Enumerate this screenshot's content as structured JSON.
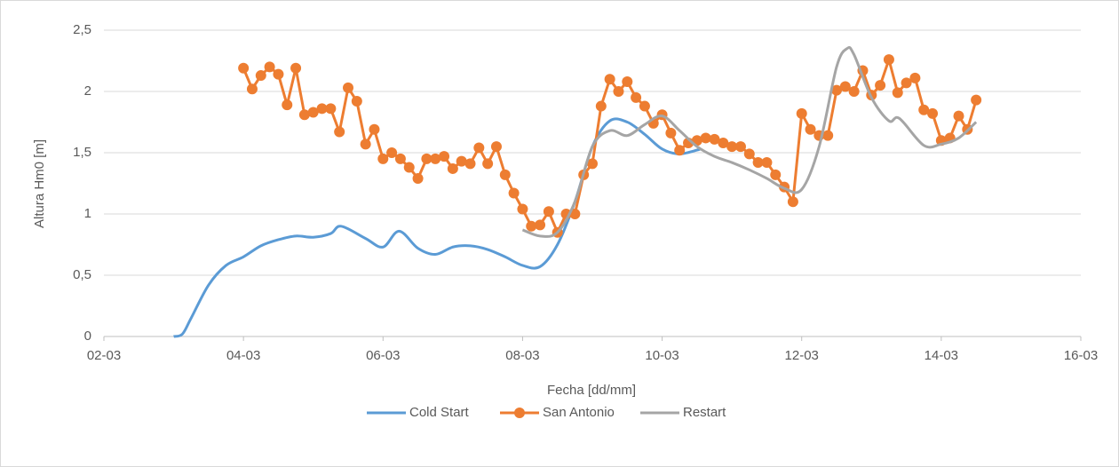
{
  "chart_data": {
    "type": "line",
    "x_label": "Fecha [dd/mm]",
    "y_label": "Altura  Hm0 [m]",
    "xlim": [
      2,
      16
    ],
    "xticks": [
      {
        "value": 2,
        "label": "02-03"
      },
      {
        "value": 4,
        "label": "04-03"
      },
      {
        "value": 6,
        "label": "06-03"
      },
      {
        "value": 8,
        "label": "08-03"
      },
      {
        "value": 10,
        "label": "10-03"
      },
      {
        "value": 12,
        "label": "12-03"
      },
      {
        "value": 14,
        "label": "14-03"
      },
      {
        "value": 16,
        "label": "16-03"
      }
    ],
    "ylim": [
      0,
      2.5
    ],
    "yticks": [
      0,
      {
        "value": 0.5,
        "label": "0,5"
      },
      1,
      {
        "value": 1.5,
        "label": "1,5"
      },
      2,
      {
        "value": 2.5,
        "label": "2,5"
      }
    ],
    "grid": true,
    "legend": "bottom",
    "series": [
      {
        "name": "Cold Start",
        "color": "#5b9bd5",
        "marker": false,
        "x": [
          3,
          3.125,
          3.25,
          3.5,
          3.75,
          4,
          4.25,
          4.5,
          4.75,
          5,
          5.25,
          5.4,
          5.75,
          6,
          6.23,
          6.5,
          6.75,
          7,
          7.25,
          7.5,
          7.75,
          8,
          8.25,
          8.5,
          8.75,
          9,
          9.25,
          9.5,
          9.75,
          10,
          10.25,
          10.55
        ],
        "values": [
          0,
          0.02,
          0.15,
          0.42,
          0.58,
          0.65,
          0.74,
          0.79,
          0.82,
          0.81,
          0.84,
          0.9,
          0.8,
          0.73,
          0.86,
          0.72,
          0.67,
          0.73,
          0.74,
          0.71,
          0.65,
          0.58,
          0.57,
          0.75,
          1.1,
          1.55,
          1.76,
          1.75,
          1.65,
          1.53,
          1.49,
          1.53
        ]
      },
      {
        "name": "San Antonio",
        "color": "#ed7d31",
        "marker": true,
        "x": [
          4,
          4.125,
          4.25,
          4.375,
          4.5,
          4.625,
          4.75,
          4.875,
          5,
          5.125,
          5.25,
          5.375,
          5.5,
          5.625,
          5.75,
          5.875,
          6,
          6.125,
          6.25,
          6.375,
          6.5,
          6.625,
          6.75,
          6.875,
          7,
          7.125,
          7.25,
          7.375,
          7.5,
          7.625,
          7.75,
          7.875,
          8,
          8.125,
          8.25,
          8.375,
          8.5,
          8.625,
          8.75,
          8.875,
          9,
          9.125,
          9.25,
          9.375,
          9.5,
          9.625,
          9.75,
          9.875,
          10,
          10.125,
          10.25,
          10.375,
          10.5,
          10.625,
          10.75,
          10.875,
          11,
          11.125,
          11.25,
          11.375,
          11.5,
          11.625,
          11.75,
          11.875,
          12,
          12.125,
          12.25,
          12.375,
          12.5,
          12.625,
          12.75,
          12.875,
          13,
          13.125,
          13.25,
          13.375,
          13.5,
          13.625,
          13.75,
          13.875,
          14,
          14.125,
          14.25,
          14.375,
          14.5
        ],
        "values": [
          2.19,
          2.02,
          2.13,
          2.2,
          2.14,
          1.89,
          2.19,
          1.81,
          1.83,
          1.86,
          1.86,
          1.67,
          2.03,
          1.92,
          1.57,
          1.69,
          1.45,
          1.5,
          1.45,
          1.38,
          1.29,
          1.45,
          1.45,
          1.47,
          1.37,
          1.43,
          1.41,
          1.54,
          1.41,
          1.55,
          1.32,
          1.17,
          1.04,
          0.9,
          0.91,
          1.02,
          0.85,
          1,
          1,
          1.32,
          1.41,
          1.88,
          2.1,
          2,
          2.08,
          1.95,
          1.88,
          1.74,
          1.81,
          1.66,
          1.52,
          1.58,
          1.6,
          1.62,
          1.61,
          1.58,
          1.55,
          1.55,
          1.49,
          1.42,
          1.42,
          1.32,
          1.22,
          1.1,
          1.82,
          1.69,
          1.64,
          1.64,
          2.01,
          2.04,
          2,
          2.17,
          1.97,
          2.05,
          2.26,
          1.99,
          2.07,
          2.11,
          1.85,
          1.82,
          1.6,
          1.62,
          1.8,
          1.69,
          1.93
        ]
      },
      {
        "name": "Restart",
        "color": "#a5a5a5",
        "marker": false,
        "x": [
          8,
          8.25,
          8.5,
          8.75,
          9,
          9.25,
          9.5,
          9.75,
          10,
          10.25,
          10.5,
          10.75,
          11,
          11.25,
          11.5,
          11.75,
          12,
          12.25,
          12.5,
          12.65,
          12.75,
          13,
          13.25,
          13.4,
          13.75,
          14,
          14.25,
          14.5
        ],
        "values": [
          0.87,
          0.82,
          0.85,
          1.1,
          1.55,
          1.68,
          1.64,
          1.73,
          1.8,
          1.68,
          1.55,
          1.47,
          1.42,
          1.36,
          1.29,
          1.21,
          1.2,
          1.55,
          2.2,
          2.35,
          2.3,
          1.95,
          1.76,
          1.78,
          1.56,
          1.57,
          1.62,
          1.75
        ]
      }
    ]
  }
}
